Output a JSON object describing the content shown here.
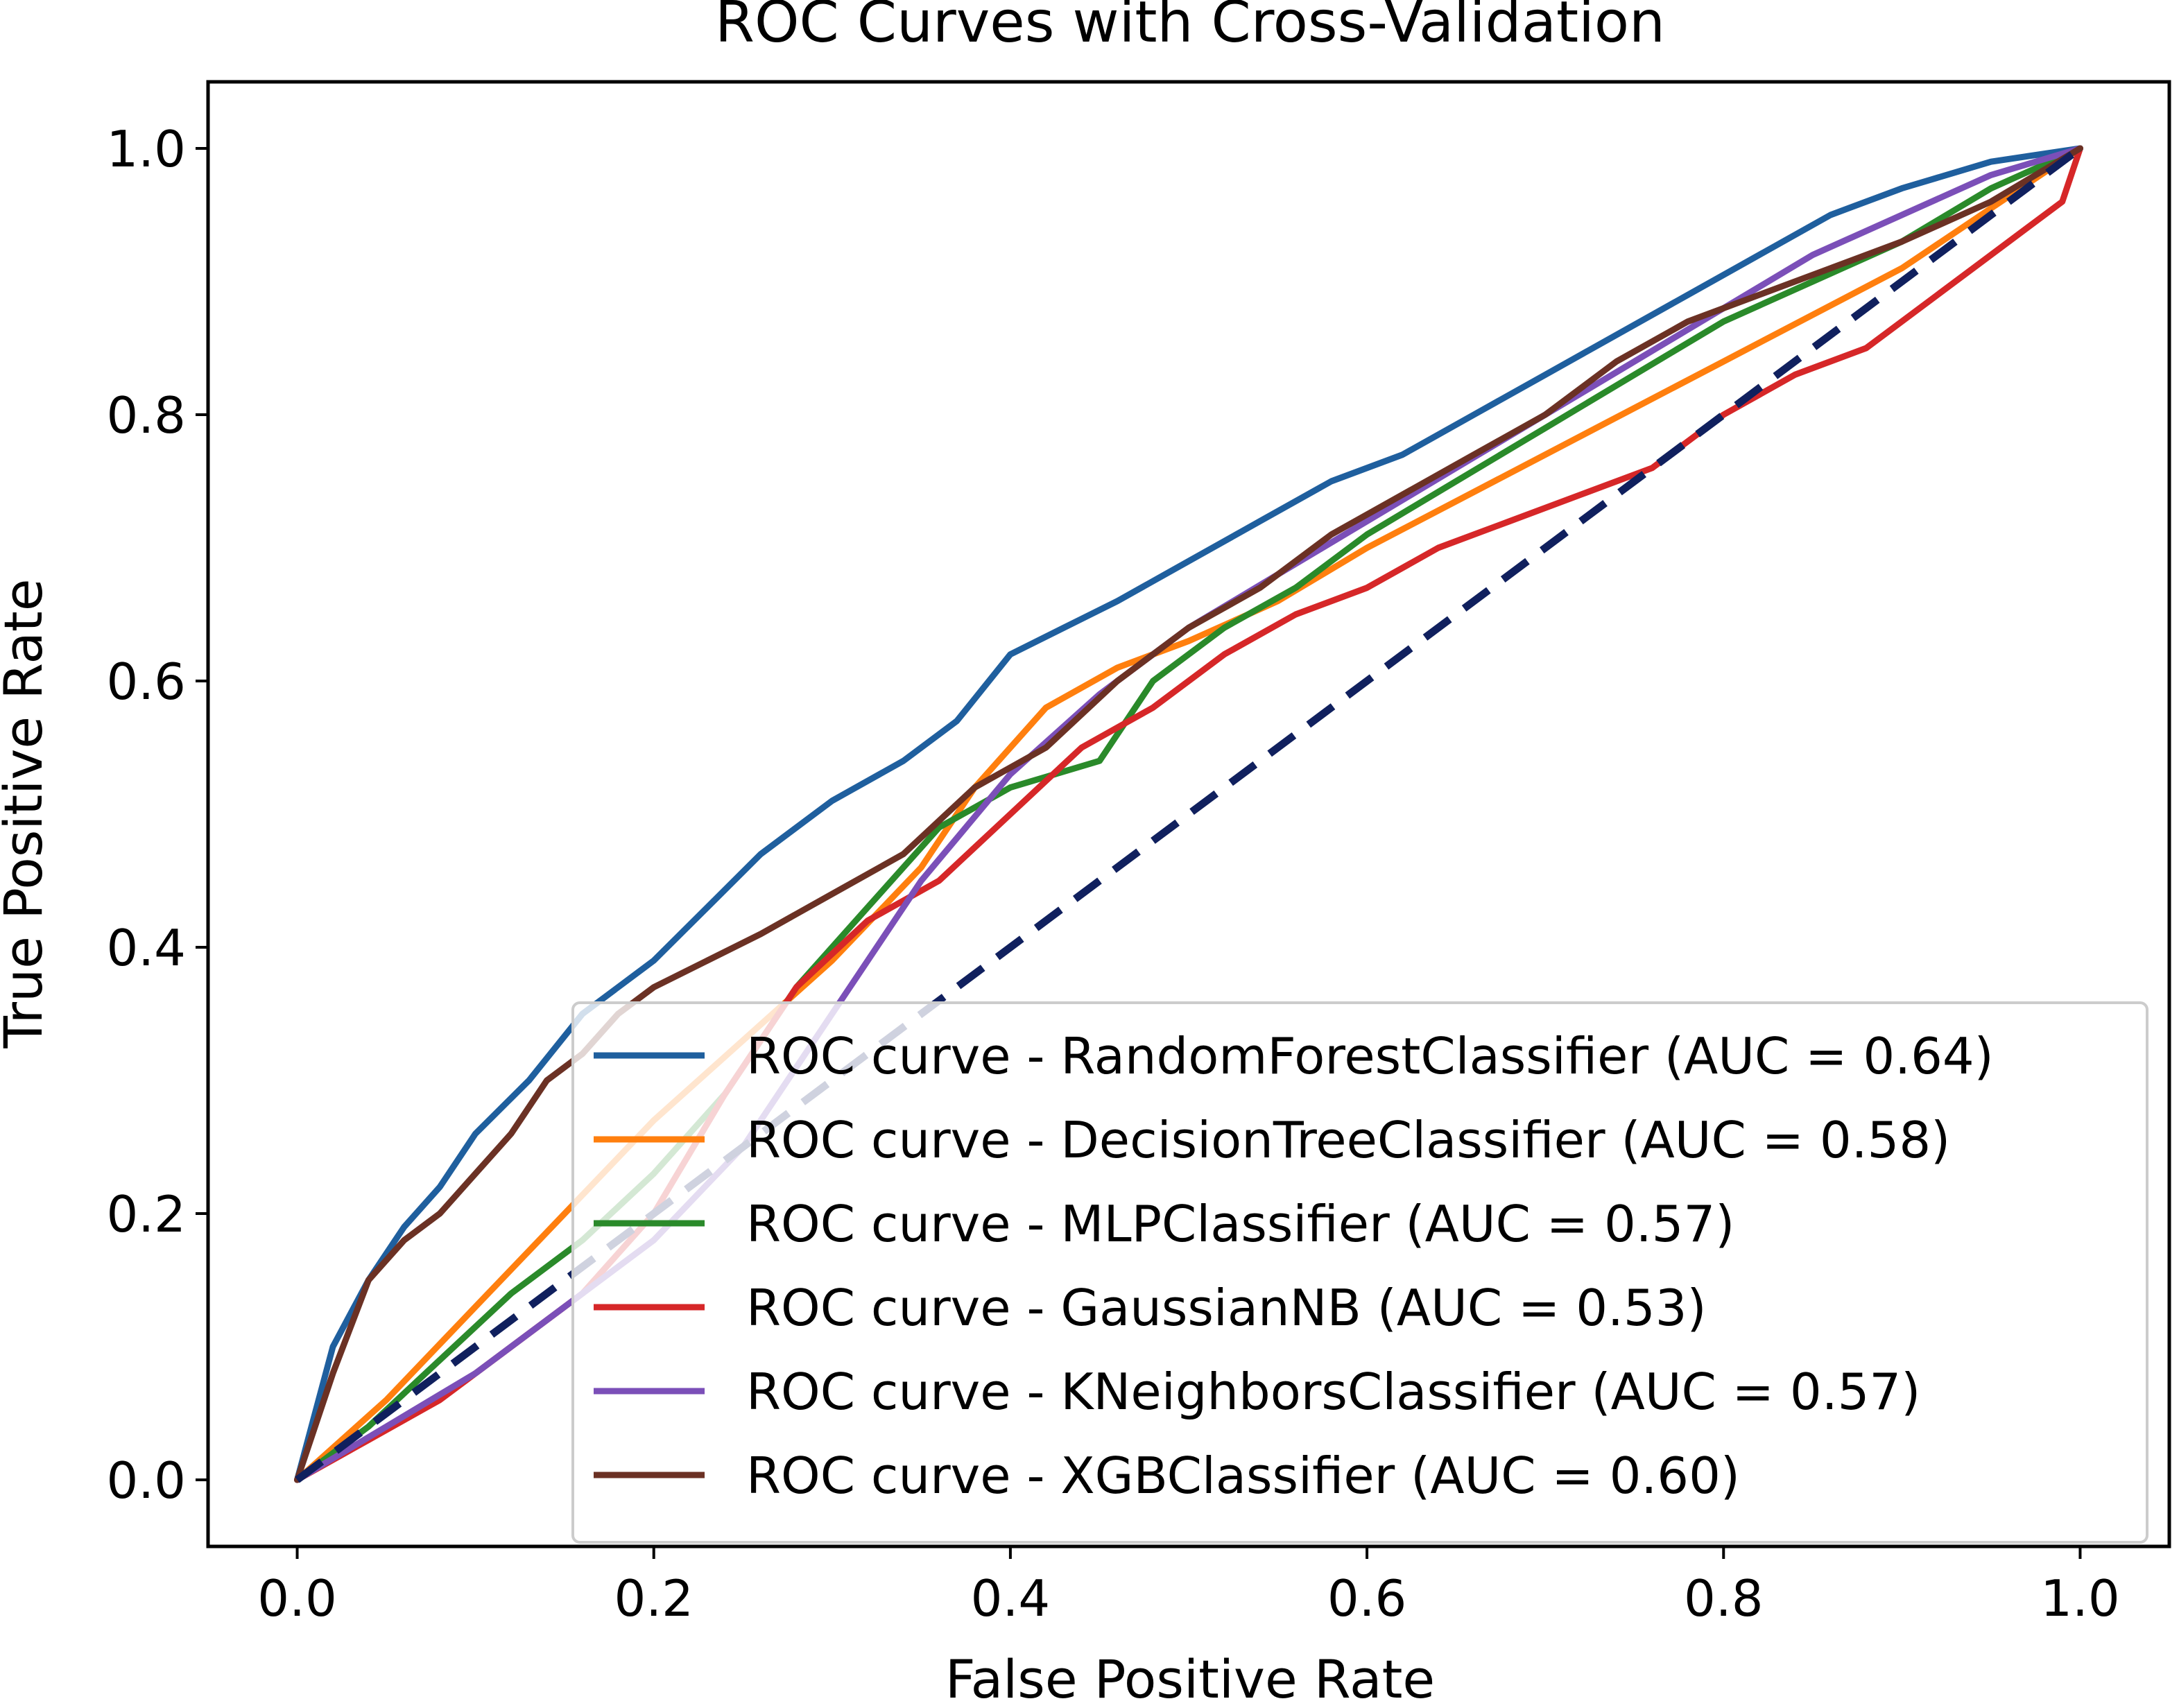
{
  "chart_data": {
    "type": "line",
    "title": "ROC Curves with Cross-Validation",
    "xlabel": "False Positive Rate",
    "ylabel": "True Positive Rate",
    "xlim": [
      -0.05,
      1.05
    ],
    "ylim": [
      -0.05,
      1.05
    ],
    "xticks": [
      0.0,
      0.2,
      0.4,
      0.6,
      0.8,
      1.0
    ],
    "yticks": [
      0.0,
      0.2,
      0.4,
      0.6,
      0.8,
      1.0
    ],
    "xtick_labels": [
      "0.0",
      "0.2",
      "0.4",
      "0.6",
      "0.8",
      "1.0"
    ],
    "ytick_labels": [
      "0.0",
      "0.2",
      "0.4",
      "0.6",
      "0.8",
      "1.0"
    ],
    "grid": false,
    "legend_position": "lower-right",
    "series": [
      {
        "name": "ROC curve - RandomForestClassifier (AUC = 0.64)",
        "color": "#1f5f9e",
        "x": [
          0.0,
          0.02,
          0.04,
          0.06,
          0.08,
          0.1,
          0.13,
          0.16,
          0.2,
          0.23,
          0.26,
          0.3,
          0.34,
          0.37,
          0.4,
          0.43,
          0.46,
          0.5,
          0.54,
          0.58,
          0.62,
          0.66,
          0.7,
          0.74,
          0.78,
          0.82,
          0.86,
          0.9,
          0.95,
          1.0
        ],
        "y": [
          0.0,
          0.1,
          0.15,
          0.19,
          0.22,
          0.26,
          0.3,
          0.35,
          0.39,
          0.43,
          0.47,
          0.51,
          0.54,
          0.57,
          0.62,
          0.64,
          0.66,
          0.69,
          0.72,
          0.75,
          0.77,
          0.8,
          0.83,
          0.86,
          0.89,
          0.92,
          0.95,
          0.97,
          0.99,
          1.0
        ]
      },
      {
        "name": "ROC curve - DecisionTreeClassifier (AUC = 0.58)",
        "color": "#ff7f0e",
        "x": [
          0.0,
          0.05,
          0.1,
          0.15,
          0.2,
          0.25,
          0.3,
          0.35,
          0.38,
          0.42,
          0.46,
          0.5,
          0.55,
          0.6,
          0.7,
          0.8,
          0.9,
          1.0
        ],
        "y": [
          0.0,
          0.06,
          0.13,
          0.2,
          0.27,
          0.33,
          0.39,
          0.46,
          0.52,
          0.58,
          0.61,
          0.63,
          0.66,
          0.7,
          0.77,
          0.84,
          0.91,
          1.0
        ]
      },
      {
        "name": "ROC curve - MLPClassifier (AUC = 0.57)",
        "color": "#2a8a2a",
        "x": [
          0.0,
          0.04,
          0.08,
          0.12,
          0.16,
          0.2,
          0.24,
          0.28,
          0.32,
          0.36,
          0.4,
          0.45,
          0.48,
          0.52,
          0.56,
          0.6,
          0.65,
          0.7,
          0.75,
          0.8,
          0.85,
          0.9,
          0.95,
          1.0
        ],
        "y": [
          0.0,
          0.04,
          0.09,
          0.14,
          0.18,
          0.23,
          0.29,
          0.37,
          0.43,
          0.49,
          0.52,
          0.54,
          0.6,
          0.64,
          0.67,
          0.71,
          0.75,
          0.79,
          0.83,
          0.87,
          0.9,
          0.93,
          0.97,
          1.0
        ]
      },
      {
        "name": "ROC curve - GaussianNB (AUC = 0.53)",
        "color": "#d62728",
        "x": [
          0.0,
          0.04,
          0.08,
          0.12,
          0.16,
          0.2,
          0.24,
          0.28,
          0.32,
          0.36,
          0.4,
          0.44,
          0.48,
          0.52,
          0.56,
          0.6,
          0.64,
          0.68,
          0.72,
          0.76,
          0.8,
          0.84,
          0.88,
          0.92,
          0.96,
          0.99,
          1.0
        ],
        "y": [
          0.0,
          0.03,
          0.06,
          0.1,
          0.14,
          0.2,
          0.29,
          0.37,
          0.42,
          0.45,
          0.5,
          0.55,
          0.58,
          0.62,
          0.65,
          0.67,
          0.7,
          0.72,
          0.74,
          0.76,
          0.8,
          0.83,
          0.85,
          0.89,
          0.93,
          0.96,
          1.0
        ]
      },
      {
        "name": "ROC curve - KNeighborsClassifier (AUC = 0.57)",
        "color": "#7b4fb8",
        "x": [
          0.0,
          0.05,
          0.1,
          0.15,
          0.2,
          0.25,
          0.3,
          0.35,
          0.4,
          0.45,
          0.5,
          0.55,
          0.6,
          0.65,
          0.7,
          0.75,
          0.8,
          0.85,
          0.9,
          0.95,
          1.0
        ],
        "y": [
          0.0,
          0.04,
          0.08,
          0.13,
          0.18,
          0.25,
          0.35,
          0.45,
          0.53,
          0.59,
          0.64,
          0.68,
          0.72,
          0.76,
          0.8,
          0.84,
          0.88,
          0.92,
          0.95,
          0.98,
          1.0
        ]
      },
      {
        "name": "ROC curve - XGBClassifier (AUC = 0.60)",
        "color": "#6b3124",
        "x": [
          0.0,
          0.02,
          0.04,
          0.06,
          0.08,
          0.1,
          0.12,
          0.14,
          0.16,
          0.18,
          0.2,
          0.23,
          0.26,
          0.3,
          0.34,
          0.38,
          0.42,
          0.46,
          0.5,
          0.54,
          0.58,
          0.62,
          0.66,
          0.7,
          0.74,
          0.78,
          0.82,
          0.86,
          0.9,
          0.95,
          1.0
        ],
        "y": [
          0.0,
          0.08,
          0.15,
          0.18,
          0.2,
          0.23,
          0.26,
          0.3,
          0.32,
          0.35,
          0.37,
          0.39,
          0.41,
          0.44,
          0.47,
          0.52,
          0.55,
          0.6,
          0.64,
          0.67,
          0.71,
          0.74,
          0.77,
          0.8,
          0.84,
          0.87,
          0.89,
          0.91,
          0.93,
          0.96,
          1.0
        ]
      }
    ],
    "reference_line": {
      "name": "chance diagonal",
      "color": "#10205e",
      "style": "dashed",
      "x": [
        0.0,
        1.0
      ],
      "y": [
        0.0,
        1.0
      ]
    }
  }
}
